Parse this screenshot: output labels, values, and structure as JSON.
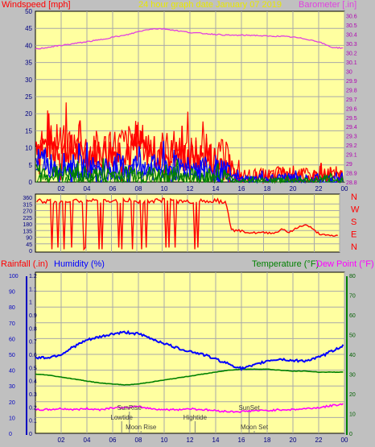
{
  "graph_title": "24 hour graph date   January 07 2019",
  "x_ticks": [
    "02",
    "04",
    "06",
    "08",
    "10",
    "12",
    "14",
    "16",
    "18",
    "20",
    "22",
    "00"
  ],
  "colors": {
    "plot_bg": "#ffffa0",
    "page_bg": "#c0c0c0",
    "grid": "#a8a8a8",
    "wind_red": "#ff0000",
    "wind_blue": "#0000ff",
    "wind_green": "#008000",
    "barometer": "#e040e0",
    "direction": "#ff0000",
    "humidity": "#0000ff",
    "temperature": "#008000",
    "dewpoint": "#ff00ff",
    "tick_text": "#000080"
  },
  "chart_data": [
    {
      "type": "line",
      "title": "24 hour graph date   January 07 2019",
      "left_label": "Windspeed [mph]",
      "right_label": "Barometer [.in]",
      "left_ticks": [
        "50",
        "45",
        "40",
        "35",
        "30",
        "25",
        "20",
        "15",
        "10",
        "5",
        "0"
      ],
      "right_ticks": [
        "30.6",
        "30.5",
        "30.4",
        "30.3",
        "30.2",
        "30.1",
        "30",
        "29.9",
        "29.8",
        "29.7",
        "29.6",
        "29.5",
        "29.4",
        "29.3",
        "29.2",
        "29.1",
        "29",
        "28.9",
        "28.8"
      ],
      "left_range": [
        0,
        50
      ],
      "right_range": [
        28.8,
        30.65
      ],
      "x_range_hours": [
        0,
        24
      ],
      "series": [
        {
          "name": "Windspeed [mph]",
          "color": "#ff0000",
          "x": [
            0,
            1,
            2,
            3,
            4,
            5,
            6,
            7,
            8,
            9,
            10,
            11,
            12,
            13,
            14,
            14.8,
            15.5,
            16,
            17,
            18,
            19,
            20,
            21,
            22,
            23,
            24
          ],
          "y": [
            16,
            14,
            13,
            12,
            11,
            11,
            12,
            13,
            14,
            12,
            11,
            11,
            10,
            10,
            9,
            7,
            3,
            2,
            2,
            2,
            3,
            3,
            2,
            2,
            2,
            2
          ]
        },
        {
          "name": "Barometer [.in]",
          "color": "#e040e0",
          "x": [
            0,
            1,
            2,
            3,
            4,
            5,
            6,
            7,
            8,
            9,
            10,
            11,
            12,
            13,
            14,
            15,
            16,
            17,
            18,
            19,
            20,
            21,
            22,
            23,
            24
          ],
          "y": [
            30.24,
            30.26,
            30.28,
            30.3,
            30.32,
            30.34,
            30.37,
            30.39,
            30.43,
            30.46,
            30.46,
            30.44,
            30.42,
            30.41,
            30.4,
            30.39,
            30.39,
            30.39,
            30.38,
            30.38,
            30.37,
            30.35,
            30.32,
            30.26,
            30.25
          ]
        }
      ]
    },
    {
      "type": "line",
      "right_letters": [
        "N",
        "W",
        "S",
        "E",
        "N"
      ],
      "left_ticks": [
        "360",
        "315",
        "270",
        "225",
        "180",
        "135",
        "90",
        "45",
        "0"
      ],
      "y_range": [
        0,
        360
      ],
      "series": [
        {
          "name": "Wind direction",
          "color": "#ff0000",
          "x": [
            0,
            1,
            2,
            3,
            4,
            5,
            6,
            7,
            8,
            9,
            10,
            11,
            12,
            13,
            14,
            15,
            15.5,
            16,
            17,
            18,
            19,
            19.5,
            20,
            21,
            21.5,
            22,
            22.5,
            23,
            24
          ],
          "y": [
            340,
            330,
            335,
            330,
            340,
            335,
            330,
            340,
            335,
            330,
            340,
            335,
            330,
            335,
            340,
            330,
            135,
            135,
            120,
            120,
            120,
            150,
            120,
            170,
            170,
            135,
            110,
            100,
            100
          ]
        }
      ]
    },
    {
      "type": "line",
      "left_label_1": "Rainfall (.in)",
      "left_label_2": "Humidity (%)",
      "right_label_1": "Temperature (°F)",
      "right_label_2": "Dew Point (°F)",
      "humidity_ticks": [
        "100",
        "90",
        "80",
        "70",
        "60",
        "50",
        "40",
        "30",
        "20",
        "10",
        "0"
      ],
      "rain_ticks": [
        "1.2",
        "1.1",
        "1",
        "0.9",
        "0.8",
        "0.7",
        "0.6",
        "0.5",
        "0.4",
        "0.3",
        "0.2",
        "0.1",
        "0"
      ],
      "temp_ticks": [
        "80",
        "70",
        "60",
        "50",
        "40",
        "30",
        "20",
        "10",
        "0"
      ],
      "humidity_range": [
        0,
        100
      ],
      "temp_range": [
        0,
        80
      ],
      "series": [
        {
          "name": "Humidity (%)",
          "color": "#0000ff",
          "x": [
            0,
            1,
            2,
            3,
            4,
            5,
            6,
            7,
            8,
            9,
            10,
            11,
            12,
            13,
            14,
            15,
            16,
            17,
            18,
            19,
            20,
            21,
            22,
            23,
            24
          ],
          "y": [
            48,
            48,
            50,
            55,
            59,
            61,
            63,
            64,
            63,
            60,
            57,
            54,
            52,
            50,
            47,
            44,
            41,
            43,
            46,
            47,
            46,
            46,
            48,
            52,
            56
          ]
        },
        {
          "name": "Temperature (°F)",
          "color": "#008000",
          "x": [
            0,
            1,
            2,
            3,
            4,
            5,
            6,
            7,
            8,
            9,
            10,
            11,
            12,
            13,
            14,
            15,
            16,
            17,
            18,
            19,
            20,
            21,
            22,
            23,
            24
          ],
          "y": [
            30,
            29.5,
            28.5,
            27.5,
            26.5,
            25.5,
            25,
            24.5,
            25,
            26,
            27,
            28,
            29,
            30,
            31,
            32,
            32.5,
            32.5,
            32.5,
            32,
            31.5,
            31.5,
            31,
            31,
            31
          ]
        },
        {
          "name": "Dew Point (°F)",
          "color": "#ff00ff",
          "x": [
            0,
            1,
            2,
            3,
            4,
            5,
            6,
            7,
            8,
            9,
            10,
            11,
            12,
            13,
            14,
            15,
            16,
            17,
            18,
            19,
            20,
            21,
            22,
            23,
            24
          ],
          "y": [
            12,
            12,
            12.5,
            12,
            12.5,
            12,
            13,
            13,
            13.5,
            12.5,
            12,
            12,
            12.5,
            12,
            11.5,
            11,
            11,
            11.5,
            11.5,
            12,
            12,
            12.5,
            13,
            14,
            15
          ]
        }
      ]
    }
  ],
  "events": [
    {
      "label": "SunRise",
      "hour": 7.3,
      "row": 0
    },
    {
      "label": "Lowtide",
      "hour": 6.7,
      "row": 1
    },
    {
      "label": "Moon Rise",
      "hour": 8.2,
      "row": 2
    },
    {
      "label": "Hightide",
      "hour": 12.4,
      "row": 1
    },
    {
      "label": "SunSet",
      "hour": 16.6,
      "row": 0
    },
    {
      "label": "Moon Set",
      "hour": 17.0,
      "row": 2
    }
  ]
}
